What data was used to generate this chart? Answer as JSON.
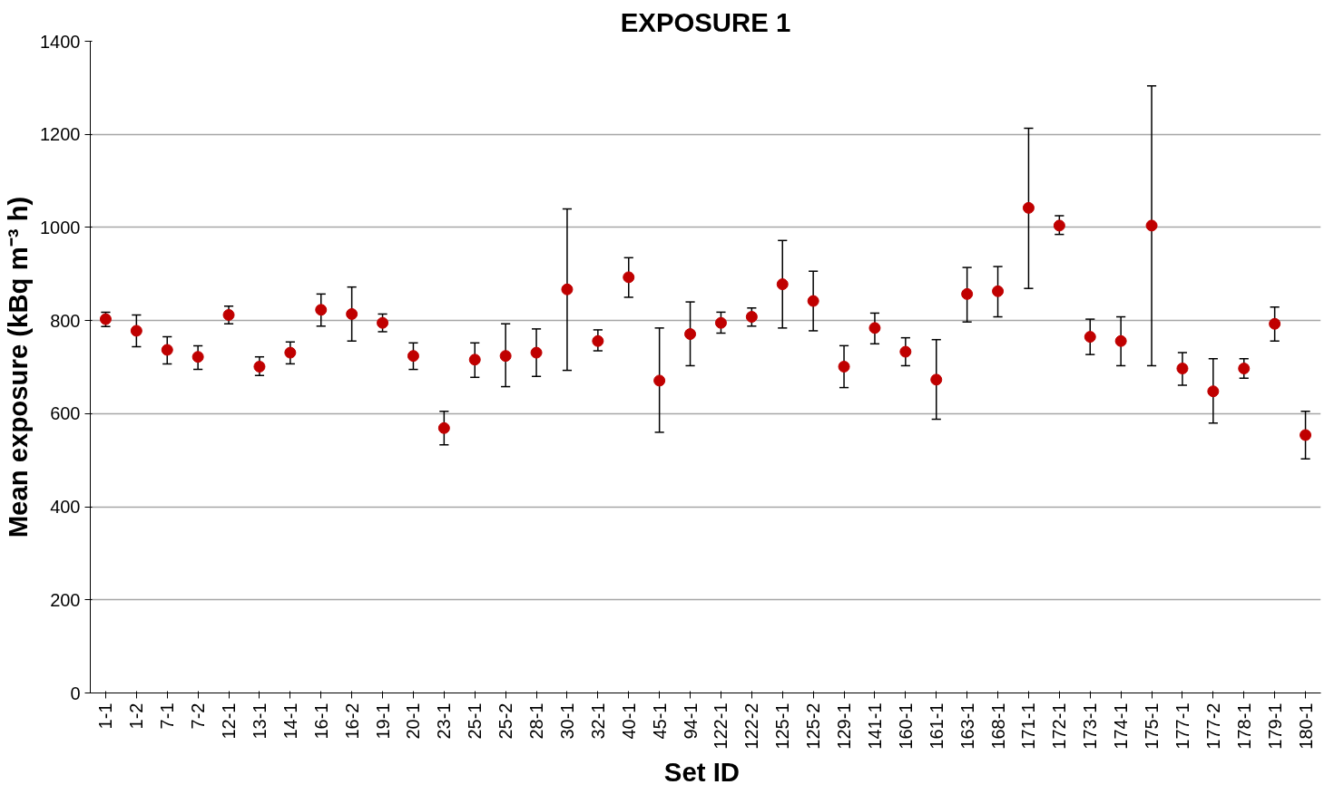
{
  "chart_data": {
    "type": "scatter",
    "title": "EXPOSURE 1",
    "xlabel": "Set  ID",
    "ylabel": "Mean exposure (kBq m⁻³ h)",
    "categories": [
      "1-1",
      "1-2",
      "7-1",
      "7-2",
      "12-1",
      "13-1",
      "14-1",
      "16-1",
      "16-2",
      "19-1",
      "20-1",
      "23-1",
      "25-1",
      "25-2",
      "28-1",
      "30-1",
      "32-1",
      "40-1",
      "45-1",
      "94-1",
      "122-1",
      "122-2",
      "125-1",
      "125-2",
      "129-1",
      "141-1",
      "160-1",
      "161-1",
      "163-1",
      "168-1",
      "171-1",
      "172-1",
      "173-1",
      "174-1",
      "175-1",
      "177-1",
      "177-2",
      "178-1",
      "179-1",
      "180-1"
    ],
    "series": [
      {
        "color": "#c00000",
        "values": [
          803,
          778,
          737,
          722,
          812,
          701,
          731,
          823,
          814,
          795,
          724,
          569,
          716,
          724,
          731,
          867,
          756,
          893,
          671,
          771,
          795,
          808,
          878,
          842,
          701,
          784,
          733,
          673,
          857,
          863,
          1042,
          1004,
          765,
          756,
          1004,
          697,
          648,
          697,
          793,
          554
        ],
        "errors": [
          [
            787,
            818
          ],
          [
            744,
            812
          ],
          [
            707,
            765
          ],
          [
            695,
            746
          ],
          [
            793,
            831
          ],
          [
            682,
            722
          ],
          [
            707,
            754
          ],
          [
            788,
            857
          ],
          [
            756,
            872
          ],
          [
            776,
            814
          ],
          [
            695,
            752
          ],
          [
            533,
            605
          ],
          [
            678,
            752
          ],
          [
            658,
            793
          ],
          [
            680,
            782
          ],
          [
            693,
            1040
          ],
          [
            735,
            780
          ],
          [
            850,
            935
          ],
          [
            560,
            784
          ],
          [
            703,
            840
          ],
          [
            773,
            818
          ],
          [
            788,
            827
          ],
          [
            784,
            972
          ],
          [
            778,
            906
          ],
          [
            656,
            746
          ],
          [
            750,
            816
          ],
          [
            703,
            763
          ],
          [
            588,
            759
          ],
          [
            797,
            914
          ],
          [
            808,
            916
          ],
          [
            869,
            1213
          ],
          [
            985,
            1025
          ],
          [
            727,
            803
          ],
          [
            703,
            808
          ],
          [
            703,
            1304
          ],
          [
            661,
            731
          ],
          [
            580,
            718
          ],
          [
            676,
            718
          ],
          [
            756,
            829
          ],
          [
            503,
            605
          ]
        ]
      }
    ],
    "ylim": [
      0,
      1400
    ],
    "yticks": [
      0,
      200,
      400,
      600,
      800,
      1000,
      1200,
      1400
    ],
    "grid": "y",
    "marker": "circle"
  }
}
